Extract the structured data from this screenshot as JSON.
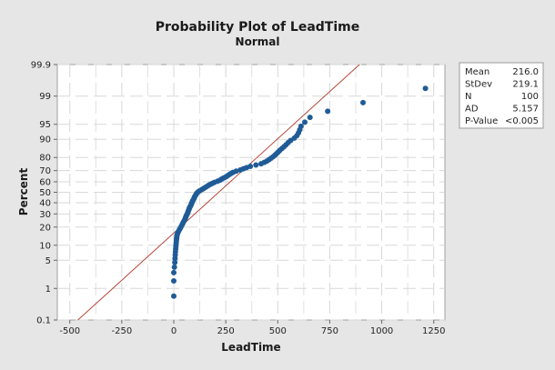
{
  "chart_data": {
    "type": "scatter",
    "title": "Probability Plot of LeadTime",
    "subtitle": "Normal",
    "xlabel": "LeadTime",
    "ylabel": "Percent",
    "xlim": [
      -550,
      1300
    ],
    "ylim_percent": [
      0.1,
      99.9
    ],
    "y_scale": "normal-probability",
    "x_ticks": [
      -500,
      -250,
      0,
      250,
      500,
      750,
      1000,
      1250
    ],
    "y_ticks": [
      0.1,
      1,
      5,
      10,
      20,
      30,
      40,
      50,
      60,
      70,
      80,
      90,
      95,
      99,
      99.9
    ],
    "grid": true,
    "fit_line": {
      "color": "#b5483b",
      "mean": 216.0,
      "stdev": 219.1
    },
    "point_color": "#1f5b96",
    "points": [
      [
        0,
        0.6
      ],
      [
        0,
        1.6
      ],
      [
        0,
        2.6
      ],
      [
        3,
        3.5
      ],
      [
        5,
        4.5
      ],
      [
        6,
        5.5
      ],
      [
        7,
        6.5
      ],
      [
        8,
        7.5
      ],
      [
        9,
        8.5
      ],
      [
        10,
        9.5
      ],
      [
        11,
        10.5
      ],
      [
        12,
        11.5
      ],
      [
        13,
        12.5
      ],
      [
        14,
        13.5
      ],
      [
        15,
        14.5
      ],
      [
        17,
        15.5
      ],
      [
        20,
        16.5
      ],
      [
        24,
        17.5
      ],
      [
        28,
        18.5
      ],
      [
        32,
        19.5
      ],
      [
        36,
        20.5
      ],
      [
        40,
        21.5
      ],
      [
        43,
        22.5
      ],
      [
        46,
        23.5
      ],
      [
        50,
        24.5
      ],
      [
        53,
        25.5
      ],
      [
        56,
        26.5
      ],
      [
        58,
        27.5
      ],
      [
        60,
        28.5
      ],
      [
        63,
        29.5
      ],
      [
        66,
        30.5
      ],
      [
        68,
        31.5
      ],
      [
        70,
        32.5
      ],
      [
        72,
        33.5
      ],
      [
        74,
        34.5
      ],
      [
        76,
        35.5
      ],
      [
        79,
        36.5
      ],
      [
        82,
        37.5
      ],
      [
        84,
        38.5
      ],
      [
        86,
        39.5
      ],
      [
        88,
        40.5
      ],
      [
        90,
        41.5
      ],
      [
        93,
        42.5
      ],
      [
        96,
        43.5
      ],
      [
        98,
        44.5
      ],
      [
        100,
        45.5
      ],
      [
        103,
        46.5
      ],
      [
        106,
        47.5
      ],
      [
        109,
        48.5
      ],
      [
        112,
        49.5
      ],
      [
        118,
        50.5
      ],
      [
        126,
        51.5
      ],
      [
        134,
        52.5
      ],
      [
        142,
        53.5
      ],
      [
        150,
        54.5
      ],
      [
        158,
        55.5
      ],
      [
        166,
        56.5
      ],
      [
        175,
        57.5
      ],
      [
        185,
        58.5
      ],
      [
        195,
        59.5
      ],
      [
        210,
        60.5
      ],
      [
        222,
        61.5
      ],
      [
        230,
        62.5
      ],
      [
        240,
        63.5
      ],
      [
        250,
        64.5
      ],
      [
        258,
        65.5
      ],
      [
        266,
        66.5
      ],
      [
        275,
        67.5
      ],
      [
        285,
        68.5
      ],
      [
        300,
        69.5
      ],
      [
        320,
        70.5
      ],
      [
        335,
        71.5
      ],
      [
        350,
        72.5
      ],
      [
        368,
        73.5
      ],
      [
        395,
        74.5
      ],
      [
        420,
        75.5
      ],
      [
        435,
        76.5
      ],
      [
        448,
        77.5
      ],
      [
        458,
        78.5
      ],
      [
        468,
        79.5
      ],
      [
        478,
        80.5
      ],
      [
        486,
        81.5
      ],
      [
        494,
        82.5
      ],
      [
        502,
        83.5
      ],
      [
        510,
        84.5
      ],
      [
        520,
        85.5
      ],
      [
        530,
        86.5
      ],
      [
        540,
        87.5
      ],
      [
        550,
        88.5
      ],
      [
        562,
        89.5
      ],
      [
        580,
        90.5
      ],
      [
        592,
        91.5
      ],
      [
        600,
        92.5
      ],
      [
        606,
        93.5
      ],
      [
        612,
        94.5
      ],
      [
        630,
        95.5
      ],
      [
        655,
        96.5
      ],
      [
        740,
        97.5
      ],
      [
        910,
        98.5
      ],
      [
        1210,
        99.4
      ]
    ],
    "legend_position": "right"
  },
  "stats": {
    "rows": [
      {
        "label": "Mean",
        "value": "216.0"
      },
      {
        "label": "StDev",
        "value": "219.1"
      },
      {
        "label": "N",
        "value": "100"
      },
      {
        "label": "AD",
        "value": "5.157"
      },
      {
        "label": "P-Value",
        "value": "<0.005"
      }
    ]
  }
}
